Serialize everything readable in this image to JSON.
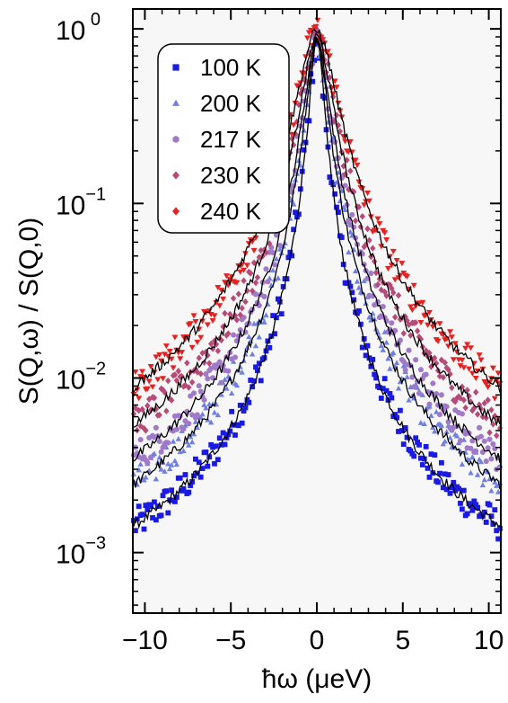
{
  "chart_data": {
    "type": "scatter",
    "title": "",
    "xlabel": "ħω (μeV)",
    "ylabel": "S(Q,ω) / S(Q,0)",
    "xlim": [
      -10.7,
      10.7
    ],
    "ylim": [
      0.00045,
      1.3
    ],
    "yscale": "log",
    "grid": false,
    "legend_position": "top-left",
    "background": "#f7f7f7",
    "x_ticks": [
      -10,
      -5,
      0,
      5,
      10
    ],
    "x_tick_labels": [
      "−10",
      "−5",
      "0",
      "5",
      "10"
    ],
    "y_ticks": [
      {
        "value": 1,
        "base": "10",
        "exp": " 0"
      },
      {
        "value": 0.1,
        "base": "10",
        "exp": "−1"
      },
      {
        "value": 0.01,
        "base": "10",
        "exp": "−2"
      },
      {
        "value": 0.001,
        "base": "10",
        "exp": "−3"
      }
    ],
    "series": [
      {
        "name": "100 K",
        "marker": "square",
        "color": "#1a1ae6",
        "gamma": 0.38,
        "floor": 0.00035,
        "peak": 0.85
      },
      {
        "name": "200 K",
        "marker": "triangle-up",
        "color": "#7080e0",
        "gamma": 0.52,
        "floor": 0.0004,
        "peak": 0.87
      },
      {
        "name": "217 K",
        "marker": "circle",
        "color": "#a07ac8",
        "gamma": 0.62,
        "floor": 0.0005,
        "peak": 0.88
      },
      {
        "name": "230 K",
        "marker": "diamond",
        "color": "#b84a78",
        "gamma": 0.78,
        "floor": 0.0006,
        "peak": 0.9
      },
      {
        "name": "240 K",
        "marker": "triangle-down",
        "color": "#e82020",
        "gamma": 0.98,
        "floor": 0.0007,
        "peak": 0.97
      }
    ],
    "fit_line_color": "#000000",
    "point_spacing": 0.1
  }
}
